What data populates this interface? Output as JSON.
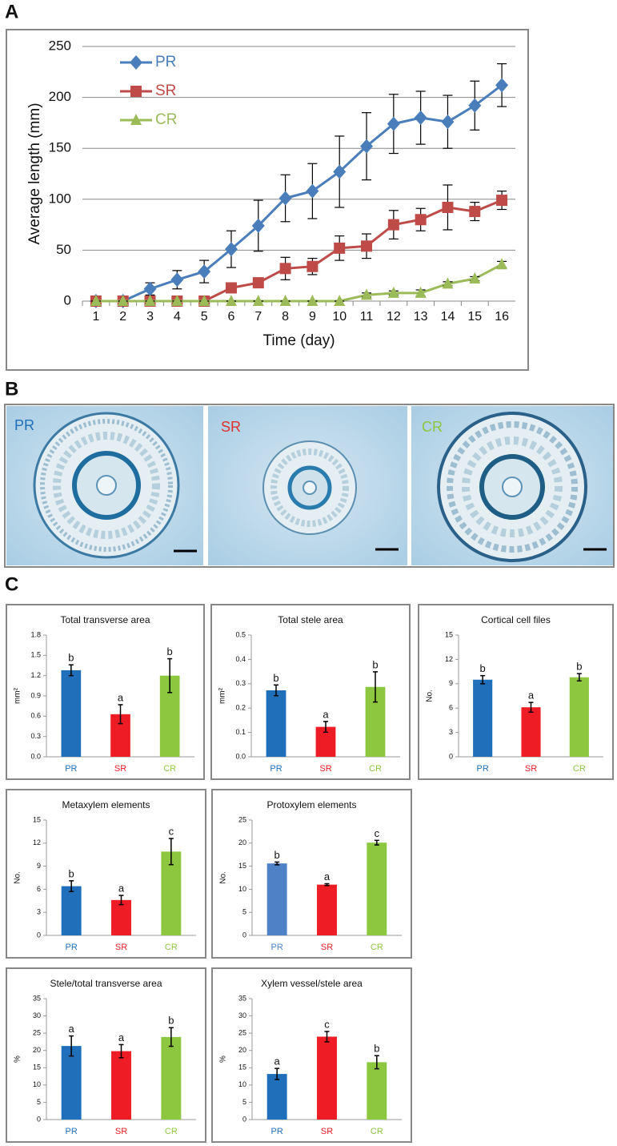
{
  "panels": [
    "A",
    "B",
    "C"
  ],
  "micrographs": {
    "labels": [
      "PR",
      "SR",
      "CR"
    ]
  },
  "chart_data": [
    {
      "type": "line",
      "x_label": "Time (day)",
      "y_label": "Average length (mm)",
      "categories": [
        "1",
        "2",
        "3",
        "4",
        "5",
        "6",
        "7",
        "8",
        "9",
        "10",
        "11",
        "12",
        "13",
        "14",
        "15",
        "16"
      ],
      "ylim": [
        0,
        250
      ],
      "yticks": [
        0,
        50,
        100,
        150,
        200,
        250
      ],
      "grid": true,
      "legend": "upper left",
      "series": [
        {
          "name": "PR",
          "color": "#4a7ebb",
          "marker": "diamond",
          "values": [
            0,
            0,
            12,
            21,
            29,
            51,
            74,
            101,
            108,
            127,
            152,
            174,
            180,
            176,
            192,
            212
          ],
          "errors": [
            0,
            0,
            6,
            9,
            11,
            18,
            25,
            23,
            27,
            35,
            33,
            29,
            26,
            26,
            24,
            21
          ]
        },
        {
          "name": "SR",
          "color": "#be4b48",
          "marker": "square",
          "values": [
            0,
            0,
            0,
            0,
            0,
            13,
            18,
            32,
            34,
            52,
            54,
            75,
            80,
            92,
            88,
            99
          ],
          "errors": [
            0,
            0,
            0,
            0,
            0,
            3,
            3,
            11,
            8,
            12,
            12,
            14,
            11,
            22,
            9,
            9
          ]
        },
        {
          "name": "CR",
          "color": "#9bbb59",
          "marker": "triangle",
          "values": [
            0,
            0,
            0,
            0,
            0,
            0,
            0,
            0,
            0,
            0,
            6,
            8,
            8,
            17,
            22,
            36
          ],
          "errors": [
            0,
            0,
            0,
            0,
            0,
            0,
            0,
            0,
            0,
            0,
            2,
            2,
            3,
            2,
            2,
            3
          ]
        }
      ]
    },
    {
      "type": "bar",
      "title": "Total transverse area",
      "y_label": "mm²",
      "categories": [
        "PR",
        "SR",
        "CR"
      ],
      "colors": [
        "#1f6fba",
        "#ee1c25",
        "#8dc63f"
      ],
      "values": [
        1.28,
        0.63,
        1.2
      ],
      "errors": [
        0.08,
        0.14,
        0.25
      ],
      "annotations": [
        "b",
        "a",
        "b"
      ],
      "ylim": [
        0,
        1.8
      ],
      "yticks": [
        {
          "value": 0,
          "label": "0.0"
        },
        0.3,
        0.6,
        0.9,
        1.2,
        1.5,
        1.8
      ]
    },
    {
      "type": "bar",
      "title": "Total stele area",
      "y_label": "mm²",
      "categories": [
        "PR",
        "SR",
        "CR"
      ],
      "colors": [
        "#1f6fba",
        "#ee1c25",
        "#8dc63f"
      ],
      "values": [
        0.273,
        0.123,
        0.287
      ],
      "errors": [
        0.022,
        0.022,
        0.062
      ],
      "annotations": [
        "b",
        "a",
        "b"
      ],
      "ylim": [
        0,
        0.5
      ],
      "yticks": [
        {
          "value": 0,
          "label": "0.0"
        },
        0.1,
        0.2,
        0.3,
        0.4,
        0.5
      ]
    },
    {
      "type": "bar",
      "title": "Cortical cell files",
      "y_label": "No.",
      "categories": [
        "PR",
        "SR",
        "CR"
      ],
      "colors": [
        "#1f6fba",
        "#ee1c25",
        "#8dc63f"
      ],
      "values": [
        9.5,
        6.1,
        9.8
      ],
      "errors": [
        0.5,
        0.6,
        0.45
      ],
      "annotations": [
        "b",
        "a",
        "b"
      ],
      "ylim": [
        0,
        15
      ],
      "yticks": [
        0,
        3,
        6,
        9,
        12,
        15
      ]
    },
    {
      "type": "bar",
      "title": "Metaxylem elements",
      "y_label": "No.",
      "categories": [
        "PR",
        "SR",
        "CR"
      ],
      "colors": [
        "#1f6fba",
        "#ee1c25",
        "#8dc63f"
      ],
      "values": [
        6.4,
        4.6,
        10.9
      ],
      "errors": [
        0.7,
        0.6,
        1.7
      ],
      "annotations": [
        "b",
        "a",
        "c"
      ],
      "ylim": [
        0,
        15
      ],
      "yticks": [
        0,
        3,
        6,
        9,
        12,
        15
      ]
    },
    {
      "type": "bar",
      "title": "Protoxylem elements",
      "y_label": "No.",
      "categories": [
        "PR",
        "SR",
        "CR"
      ],
      "colors": [
        "#4f81c7",
        "#ee1c25",
        "#8dc63f"
      ],
      "values": [
        15.6,
        11.0,
        20.1
      ],
      "errors": [
        0.3,
        0.2,
        0.5
      ],
      "annotations": [
        "b",
        "a",
        "c"
      ],
      "ylim": [
        0,
        25
      ],
      "yticks": [
        0,
        5,
        10,
        15,
        20,
        25
      ]
    },
    {
      "type": "bar",
      "title": "Stele/total transverse area",
      "y_label": "%",
      "categories": [
        "PR",
        "SR",
        "CR"
      ],
      "colors": [
        "#1f6fba",
        "#ee1c25",
        "#8dc63f"
      ],
      "values": [
        21.3,
        19.8,
        23.9
      ],
      "errors": [
        2.9,
        1.9,
        2.7
      ],
      "annotations": [
        "a",
        "a",
        "b"
      ],
      "ylim": [
        0,
        35
      ],
      "yticks": [
        0,
        5,
        10,
        15,
        20,
        25,
        30,
        35
      ]
    },
    {
      "type": "bar",
      "title": "Xylem vessel/stele area",
      "y_label": "%",
      "categories": [
        "PR",
        "SR",
        "CR"
      ],
      "colors": [
        "#1f6fba",
        "#ee1c25",
        "#8dc63f"
      ],
      "values": [
        13.2,
        24.0,
        16.6
      ],
      "errors": [
        1.6,
        1.5,
        1.9
      ],
      "annotations": [
        "a",
        "c",
        "b"
      ],
      "ylim": [
        0,
        35
      ],
      "yticks": [
        0,
        5,
        10,
        15,
        20,
        25,
        30,
        35
      ]
    }
  ]
}
